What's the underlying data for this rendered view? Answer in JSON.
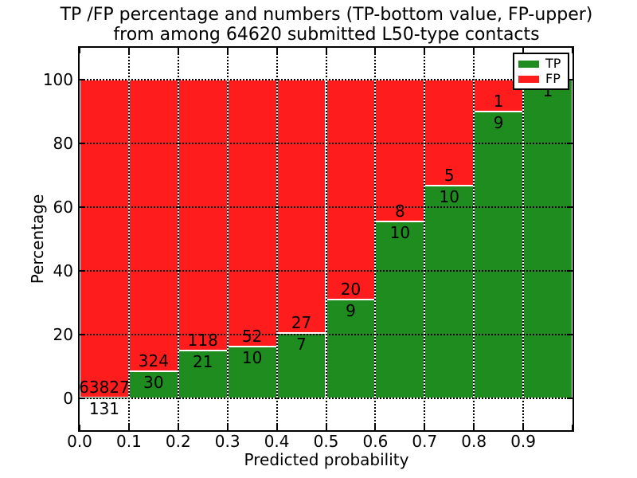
{
  "title": {
    "line1": "TP /FP percentage and numbers (TP-bottom value, FP-upper)",
    "line2": "from among 64620 submitted L50-type contacts"
  },
  "legend": {
    "entries": [
      {
        "label": "TP",
        "color": "#1e8c1e"
      },
      {
        "label": "FP",
        "color": "#ff1c1c"
      }
    ]
  },
  "chart_data": {
    "type": "bar",
    "subtype": "stacked-percentage",
    "title": "TP /FP percentage and numbers (TP-bottom value, FP-upper) from among 64620 submitted L50-type contacts",
    "xlabel": "Predicted probability",
    "ylabel": "Percentage",
    "xlim": [
      0.0,
      1.0
    ],
    "ylim": [
      -10,
      110
    ],
    "grid": "dotted",
    "legend_position": "upper right",
    "bin_width": 0.1,
    "categories": [
      "0.0",
      "0.1",
      "0.2",
      "0.3",
      "0.4",
      "0.5",
      "0.6",
      "0.7",
      "0.8",
      "0.9"
    ],
    "x_tick_labels": [
      "0.0",
      "0.1",
      "0.2",
      "0.3",
      "0.4",
      "0.5",
      "0.6",
      "0.7",
      "0.8",
      "0.9"
    ],
    "y_tick_labels": [
      "0",
      "20",
      "40",
      "60",
      "80",
      "100"
    ],
    "y_tick_values": [
      0,
      20,
      40,
      60,
      80,
      100
    ],
    "series": [
      {
        "name": "TP",
        "color": "#1e8c1e",
        "stack": "bottom",
        "values": [
          131,
          30,
          21,
          10,
          7,
          9,
          10,
          10,
          9,
          1
        ],
        "labels": [
          "131",
          "30",
          "21",
          "10",
          "7",
          "9",
          "10",
          "10",
          "9",
          "1"
        ]
      },
      {
        "name": "FP",
        "color": "#ff1c1c",
        "stack": "top",
        "values": [
          63827,
          324,
          118,
          52,
          27,
          20,
          8,
          5,
          1,
          0
        ],
        "labels": [
          "63827",
          "324",
          "118",
          "52",
          "27",
          "20",
          "8",
          "5",
          "1",
          ""
        ]
      }
    ]
  }
}
